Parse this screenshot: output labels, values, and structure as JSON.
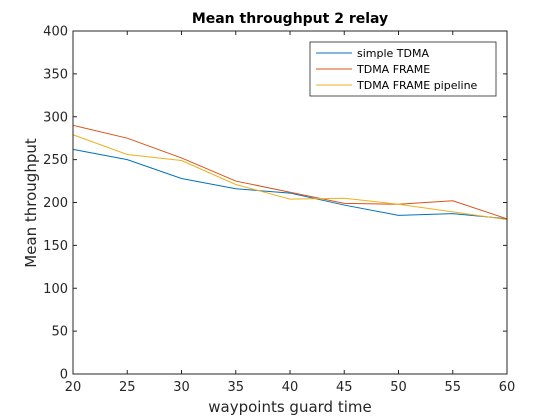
{
  "chart_data": {
    "type": "line",
    "title": "Mean throughput 2 relay",
    "xlabel": "waypoints guard time",
    "ylabel": "Mean throughput",
    "x": [
      20,
      25,
      30,
      35,
      40,
      45,
      50,
      55,
      60
    ],
    "xlim": [
      20,
      60
    ],
    "ylim": [
      0,
      400
    ],
    "xticks": [
      "20",
      "25",
      "30",
      "35",
      "40",
      "45",
      "50",
      "55",
      "60"
    ],
    "yticks": [
      "0",
      "50",
      "100",
      "150",
      "200",
      "250",
      "300",
      "350",
      "400"
    ],
    "grid": false,
    "legend_position": "top-right",
    "series": [
      {
        "name": "simple TDMA",
        "color": "#0072BD",
        "values": [
          262,
          250,
          228,
          216,
          211,
          197,
          185,
          187,
          181
        ]
      },
      {
        "name": "TDMA FRAME",
        "color": "#D95319",
        "values": [
          290,
          275,
          252,
          225,
          212,
          199,
          198,
          202,
          181
        ]
      },
      {
        "name": "TDMA FRAME pipeline",
        "color": "#EDB120",
        "values": [
          279,
          256,
          249,
          221,
          204,
          205,
          198,
          189,
          180
        ]
      }
    ]
  }
}
